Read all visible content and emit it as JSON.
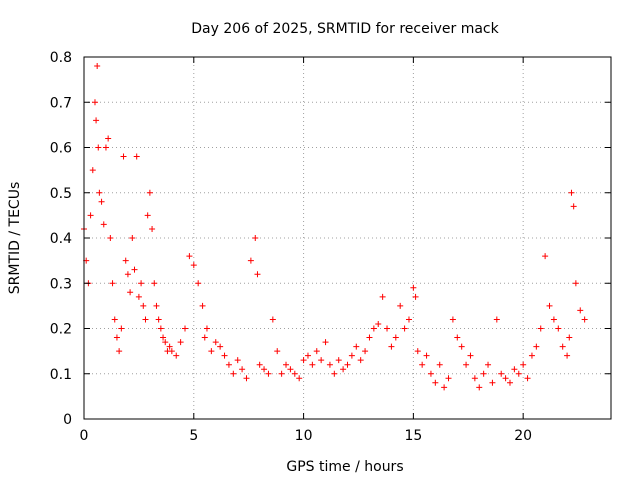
{
  "chart_data": {
    "type": "scatter",
    "title": "Day 206 of 2025, SRMTID for receiver mack",
    "xlabel": "GPS time / hours",
    "ylabel": "SRMTID / TECUs",
    "xlim": [
      0,
      24
    ],
    "ylim": [
      0,
      0.8
    ],
    "xticks": [
      0,
      5,
      10,
      15,
      20
    ],
    "xtick_labels": [
      "0",
      "5",
      "10",
      "15",
      "20"
    ],
    "yticks": [
      0,
      0.1,
      0.2,
      0.3,
      0.4,
      0.5,
      0.6,
      0.7,
      0.8
    ],
    "ytick_labels": [
      "0",
      "0.1",
      "0.2",
      "0.3",
      "0.4",
      "0.5",
      "0.6",
      "0.7",
      "0.8"
    ],
    "grid": true,
    "marker": "+",
    "color": "#ff0000",
    "series": [
      {
        "name": "SRMTID",
        "x": [
          0.0,
          0.1,
          0.2,
          0.3,
          0.4,
          0.5,
          0.55,
          0.6,
          0.65,
          0.7,
          0.8,
          0.9,
          1.0,
          1.1,
          1.2,
          1.3,
          1.4,
          1.5,
          1.6,
          1.7,
          1.8,
          1.9,
          2.0,
          2.1,
          2.2,
          2.3,
          2.4,
          2.5,
          2.6,
          2.7,
          2.8,
          2.9,
          3.0,
          3.1,
          3.2,
          3.3,
          3.4,
          3.5,
          3.6,
          3.7,
          3.8,
          3.9,
          4.0,
          4.2,
          4.4,
          4.6,
          4.8,
          5.0,
          5.2,
          5.4,
          5.5,
          5.6,
          5.8,
          6.0,
          6.2,
          6.4,
          6.6,
          6.8,
          7.0,
          7.2,
          7.4,
          7.6,
          7.8,
          7.9,
          8.0,
          8.2,
          8.4,
          8.6,
          8.8,
          9.0,
          9.2,
          9.4,
          9.6,
          9.8,
          10.0,
          10.2,
          10.4,
          10.6,
          10.8,
          11.0,
          11.2,
          11.4,
          11.6,
          11.8,
          12.0,
          12.2,
          12.4,
          12.6,
          12.8,
          13.0,
          13.2,
          13.4,
          13.6,
          13.8,
          14.0,
          14.2,
          14.4,
          14.6,
          14.8,
          15.0,
          15.1,
          15.2,
          15.4,
          15.6,
          15.8,
          16.0,
          16.2,
          16.4,
          16.6,
          16.8,
          17.0,
          17.2,
          17.4,
          17.6,
          17.8,
          18.0,
          18.2,
          18.4,
          18.6,
          18.8,
          19.0,
          19.2,
          19.4,
          19.6,
          19.8,
          20.0,
          20.2,
          20.4,
          20.6,
          20.8,
          21.0,
          21.2,
          21.4,
          21.6,
          21.8,
          22.0,
          22.1,
          22.2,
          22.3,
          22.4,
          22.6,
          22.8
        ],
        "y": [
          0.42,
          0.35,
          0.3,
          0.45,
          0.55,
          0.7,
          0.66,
          0.78,
          0.6,
          0.5,
          0.48,
          0.43,
          0.6,
          0.62,
          0.4,
          0.3,
          0.22,
          0.18,
          0.15,
          0.2,
          0.58,
          0.35,
          0.32,
          0.28,
          0.4,
          0.33,
          0.58,
          0.27,
          0.3,
          0.25,
          0.22,
          0.45,
          0.5,
          0.42,
          0.3,
          0.25,
          0.22,
          0.2,
          0.18,
          0.17,
          0.15,
          0.16,
          0.15,
          0.14,
          0.17,
          0.2,
          0.36,
          0.34,
          0.3,
          0.25,
          0.18,
          0.2,
          0.15,
          0.17,
          0.16,
          0.14,
          0.12,
          0.1,
          0.13,
          0.11,
          0.09,
          0.35,
          0.4,
          0.32,
          0.12,
          0.11,
          0.1,
          0.22,
          0.15,
          0.1,
          0.12,
          0.11,
          0.1,
          0.09,
          0.13,
          0.14,
          0.12,
          0.15,
          0.13,
          0.17,
          0.12,
          0.1,
          0.13,
          0.11,
          0.12,
          0.14,
          0.16,
          0.13,
          0.15,
          0.18,
          0.2,
          0.21,
          0.27,
          0.2,
          0.16,
          0.18,
          0.25,
          0.2,
          0.22,
          0.29,
          0.27,
          0.15,
          0.12,
          0.14,
          0.1,
          0.08,
          0.12,
          0.07,
          0.09,
          0.22,
          0.18,
          0.16,
          0.12,
          0.14,
          0.09,
          0.07,
          0.1,
          0.12,
          0.08,
          0.22,
          0.1,
          0.09,
          0.08,
          0.11,
          0.1,
          0.12,
          0.09,
          0.14,
          0.16,
          0.2,
          0.36,
          0.25,
          0.22,
          0.2,
          0.16,
          0.14,
          0.18,
          0.5,
          0.47,
          0.3,
          0.24,
          0.22
        ]
      }
    ]
  }
}
